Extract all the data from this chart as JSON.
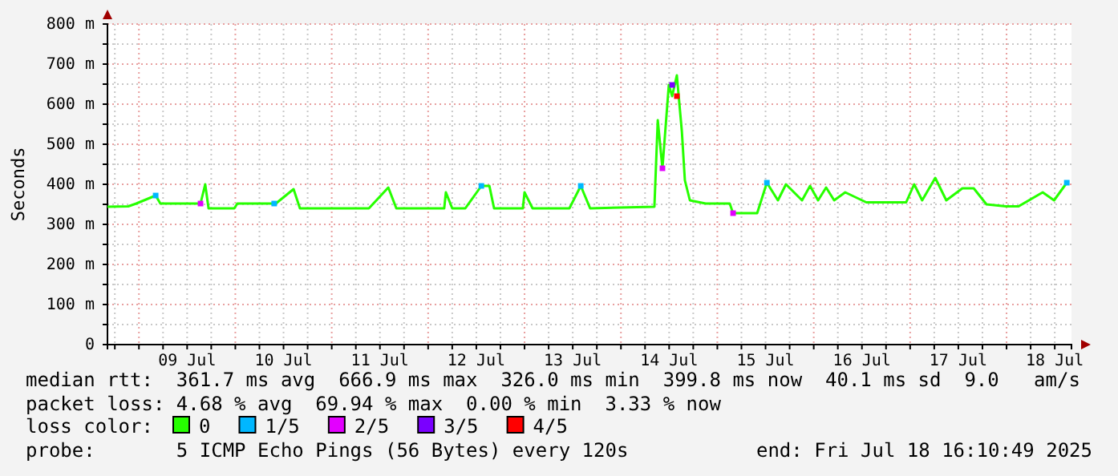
{
  "chart_data": {
    "type": "line",
    "ylabel": "Seconds",
    "xlim": [
      "2025-07-08T16:10",
      "2025-07-18T16:10"
    ],
    "xticks": [
      {
        "value": "2025-07-08T18:00",
        "label": null
      },
      {
        "value": "2025-07-09T00:00",
        "label": null
      },
      {
        "value": "2025-07-09T06:00",
        "label": null
      },
      {
        "value": "2025-07-09T12:00",
        "label": "09 Jul"
      },
      {
        "value": "2025-07-09T18:00",
        "label": null
      },
      {
        "value": "2025-07-10T00:00",
        "label": null
      },
      {
        "value": "2025-07-10T06:00",
        "label": null
      },
      {
        "value": "2025-07-10T12:00",
        "label": "10 Jul"
      },
      {
        "value": "2025-07-10T18:00",
        "label": null
      },
      {
        "value": "2025-07-11T00:00",
        "label": null
      },
      {
        "value": "2025-07-11T06:00",
        "label": null
      },
      {
        "value": "2025-07-11T12:00",
        "label": "11 Jul"
      },
      {
        "value": "2025-07-11T18:00",
        "label": null
      },
      {
        "value": "2025-07-12T00:00",
        "label": null
      },
      {
        "value": "2025-07-12T06:00",
        "label": null
      },
      {
        "value": "2025-07-12T12:00",
        "label": "12 Jul"
      },
      {
        "value": "2025-07-12T18:00",
        "label": null
      },
      {
        "value": "2025-07-13T00:00",
        "label": null
      },
      {
        "value": "2025-07-13T06:00",
        "label": null
      },
      {
        "value": "2025-07-13T12:00",
        "label": "13 Jul"
      },
      {
        "value": "2025-07-13T18:00",
        "label": null
      },
      {
        "value": "2025-07-14T00:00",
        "label": null
      },
      {
        "value": "2025-07-14T06:00",
        "label": null
      },
      {
        "value": "2025-07-14T12:00",
        "label": "14 Jul"
      },
      {
        "value": "2025-07-14T18:00",
        "label": null
      },
      {
        "value": "2025-07-15T00:00",
        "label": null
      },
      {
        "value": "2025-07-15T06:00",
        "label": null
      },
      {
        "value": "2025-07-15T12:00",
        "label": "15 Jul"
      },
      {
        "value": "2025-07-15T18:00",
        "label": null
      },
      {
        "value": "2025-07-16T00:00",
        "label": null
      },
      {
        "value": "2025-07-16T06:00",
        "label": null
      },
      {
        "value": "2025-07-16T12:00",
        "label": "16 Jul"
      },
      {
        "value": "2025-07-16T18:00",
        "label": null
      },
      {
        "value": "2025-07-17T00:00",
        "label": null
      },
      {
        "value": "2025-07-17T06:00",
        "label": null
      },
      {
        "value": "2025-07-17T12:00",
        "label": "17 Jul"
      },
      {
        "value": "2025-07-17T18:00",
        "label": null
      },
      {
        "value": "2025-07-18T00:00",
        "label": null
      },
      {
        "value": "2025-07-18T06:00",
        "label": null
      },
      {
        "value": "2025-07-18T12:00",
        "label": "18 Jul"
      }
    ],
    "ylim": [
      0,
      800
    ],
    "yticks": [
      0,
      {
        "value": 50,
        "label": null
      },
      {
        "value": 100,
        "label": "100 m"
      },
      {
        "value": 150,
        "label": null
      },
      {
        "value": 200,
        "label": "200 m"
      },
      {
        "value": 250,
        "label": null
      },
      {
        "value": 300,
        "label": "300 m"
      },
      {
        "value": 350,
        "label": null
      },
      {
        "value": 400,
        "label": "400 m"
      },
      {
        "value": 450,
        "label": null
      },
      {
        "value": 500,
        "label": "500 m"
      },
      {
        "value": 550,
        "label": null
      },
      {
        "value": 600,
        "label": "600 m"
      },
      {
        "value": 650,
        "label": null
      },
      {
        "value": 700,
        "label": "700 m"
      },
      {
        "value": 750,
        "label": null
      },
      {
        "value": 800,
        "label": "800 m"
      }
    ],
    "grid": true,
    "legend": "bottom",
    "legend_title": "loss color:",
    "series": [
      {
        "name": "0",
        "color": "#26ff00",
        "x": [
          "2025-07-08T16:10",
          "2025-07-08T21:20",
          "2025-07-08T23:20",
          "2025-07-09T04:10",
          "2025-07-09T05:20",
          "2025-07-09T09:20",
          "2025-07-09T15:20",
          "2025-07-09T16:30",
          "2025-07-09T17:20",
          "2025-07-09T23:45",
          "2025-07-10T00:30",
          "2025-07-10T09:40",
          "2025-07-10T10:05",
          "2025-07-10T14:30",
          "2025-07-10T16:05",
          "2025-07-11T09:15",
          "2025-07-11T14:05",
          "2025-07-11T16:05",
          "2025-07-12T04:00",
          "2025-07-12T04:25",
          "2025-07-12T06:00",
          "2025-07-12T09:15",
          "2025-07-12T13:15",
          "2025-07-12T15:15",
          "2025-07-12T16:25",
          "2025-07-12T23:35",
          "2025-07-13T00:00",
          "2025-07-13T02:00",
          "2025-07-13T11:10",
          "2025-07-13T14:00",
          "2025-07-13T16:20",
          "2025-07-14T08:20",
          "2025-07-14T09:10",
          "2025-07-14T10:20",
          "2025-07-14T11:55",
          "2025-07-14T12:45",
          "2025-07-14T13:55",
          "2025-07-14T15:10",
          "2025-07-14T15:55",
          "2025-07-14T17:10",
          "2025-07-14T21:05",
          "2025-07-15T03:05",
          "2025-07-15T03:55",
          "2025-07-15T09:55",
          "2025-07-15T12:20",
          "2025-07-15T15:05",
          "2025-07-15T17:05",
          "2025-07-15T21:05",
          "2025-07-15T23:05",
          "2025-07-16T01:05",
          "2025-07-16T03:05",
          "2025-07-16T05:05",
          "2025-07-16T07:50",
          "2025-07-16T13:05",
          "2025-07-16T23:00",
          "2025-07-17T01:00",
          "2025-07-17T03:00",
          "2025-07-17T06:15",
          "2025-07-17T09:00",
          "2025-07-17T13:00",
          "2025-07-17T15:50",
          "2025-07-17T19:00",
          "2025-07-17T23:50",
          "2025-07-18T03:00",
          "2025-07-18T09:00",
          "2025-07-18T11:50",
          "2025-07-18T15:00"
        ],
        "values": [
          344,
          345,
          352,
          372,
          352,
          352,
          352,
          400,
          340,
          340,
          352,
          352,
          352,
          388,
          340,
          340,
          392,
          340,
          340,
          380,
          340,
          340,
          396,
          396,
          340,
          340,
          380,
          340,
          340,
          396,
          340,
          344,
          560,
          440,
          648,
          620,
          672,
          532,
          410,
          360,
          352,
          352,
          328,
          328,
          404,
          360,
          400,
          360,
          396,
          360,
          392,
          360,
          380,
          355,
          355,
          400,
          360,
          416,
          360,
          390,
          390,
          350,
          345,
          345,
          380,
          360,
          404
        ]
      },
      {
        "name": "1/5",
        "color": "#00b7ff",
        "type": "scatter",
        "marker": "square",
        "x": [
          "2025-07-09T04:10",
          "2025-07-10T09:40",
          "2025-07-12T13:15",
          "2025-07-13T14:00",
          "2025-07-15T12:20",
          "2025-07-18T15:00"
        ],
        "values": [
          372,
          352,
          396,
          396,
          404,
          404
        ]
      },
      {
        "name": "2/5",
        "color": "#e300ff",
        "type": "scatter",
        "marker": "square",
        "x": [
          "2025-07-09T15:20",
          "2025-07-14T10:20",
          "2025-07-15T03:55"
        ],
        "values": [
          352,
          440,
          328
        ]
      },
      {
        "name": "3/5",
        "color": "#7a00ff",
        "type": "scatter",
        "marker": "square",
        "x": [
          "2025-07-14T12:45"
        ],
        "values": [
          648
        ]
      },
      {
        "name": "4/5",
        "color": "#ff0000",
        "type": "scatter",
        "marker": "square",
        "x": [
          "2025-07-14T13:55"
        ],
        "values": [
          620
        ]
      }
    ],
    "annotations": [
      "median rtt:  361.7 ms avg  666.9 ms max  326.0 ms min  399.8 ms now  40.1 ms sd  9.0   am/s",
      "packet loss: 4.68 % avg  69.94 % max  0.00 % min  3.33 % now",
      "probe:       5 ICMP Echo Pings (56 Bytes) every 120s",
      "end: Fri Jul 18 16:10:49 2025"
    ]
  }
}
